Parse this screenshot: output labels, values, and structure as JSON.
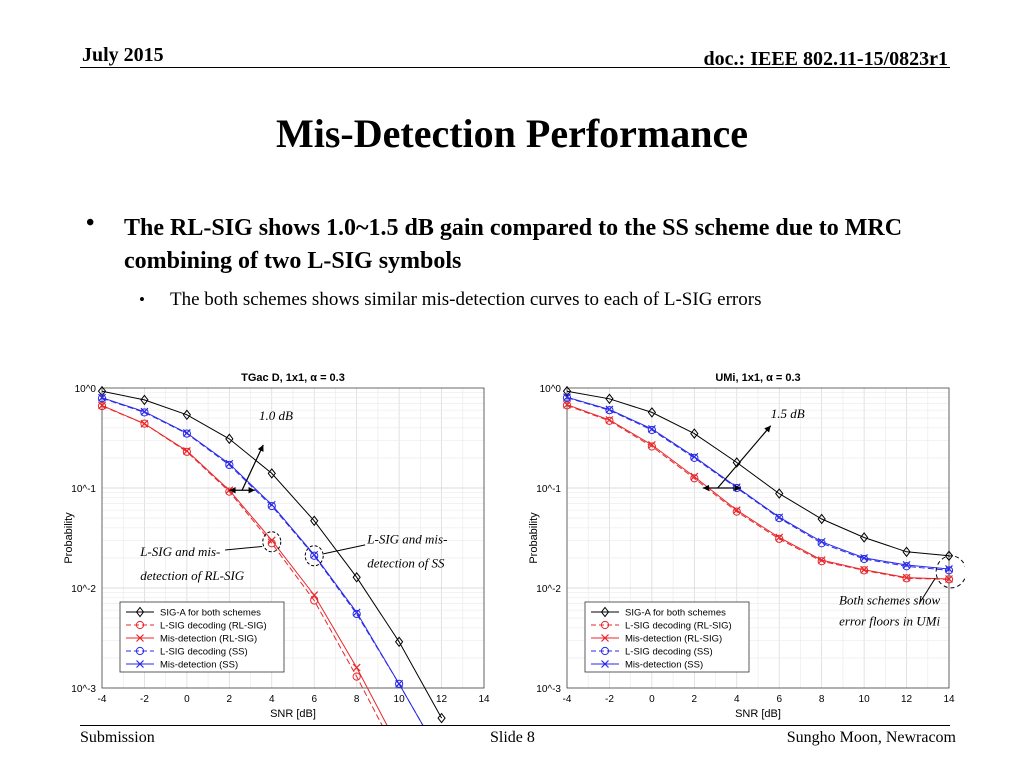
{
  "header": {
    "date": "July 2015",
    "doc": "doc.: IEEE 802.11-15/0823r1"
  },
  "title": "Mis-Detection Performance",
  "bullets": {
    "main": "The RL-SIG shows 1.0~1.5 dB gain compared to the SS scheme due to MRC combining of two L-SIG symbols",
    "sub": "The both schemes shows similar mis-detection curves to each of L-SIG errors",
    "main_marker": "•",
    "sub_marker": "•"
  },
  "footer": {
    "left": "Submission",
    "center": "Slide 8",
    "right": "Sungho Moon, Newracom"
  },
  "chart_data": [
    {
      "type": "line",
      "title": "TGac D, 1x1, α = 0.3",
      "xlabel": "SNR [dB]",
      "ylabel": "Probability",
      "xlim": [
        -4,
        14
      ],
      "ylim": [
        0.001,
        1
      ],
      "yscale": "log",
      "xticks": [
        "-4",
        "-2",
        "0",
        "2",
        "4",
        "6",
        "8",
        "10",
        "12",
        "14"
      ],
      "yticks": [
        "10^0",
        "10^-1",
        "10^-2",
        "10^-3"
      ],
      "grid": true,
      "legend_position": "bottom-left",
      "x": [
        -4,
        -2,
        0,
        2,
        4,
        6,
        8,
        10,
        12,
        14
      ],
      "series": [
        {
          "name": "SIG-A for both schemes",
          "color": "#000000",
          "marker": "diamond",
          "dash": false,
          "values": [
            0.93,
            0.76,
            0.54,
            0.31,
            0.14,
            0.047,
            0.0128,
            0.0029,
            0.0005,
            null
          ]
        },
        {
          "name": "L-SIG decoding (RL-SIG)",
          "color": "#e8262a",
          "marker": "circle",
          "dash": true,
          "values": [
            0.66,
            0.44,
            0.23,
            0.092,
            0.028,
            0.0075,
            0.0013,
            0.0002,
            null,
            null
          ]
        },
        {
          "name": "Mis-detection (RL-SIG)",
          "color": "#e8262a",
          "marker": "x",
          "dash": false,
          "values": [
            0.67,
            0.44,
            0.235,
            0.095,
            0.03,
            0.0085,
            0.0016,
            0.00025,
            null,
            null
          ]
        },
        {
          "name": "L-SIG decoding (SS)",
          "color": "#2a2ae8",
          "marker": "circle",
          "dash": true,
          "values": [
            0.79,
            0.57,
            0.35,
            0.17,
            0.066,
            0.021,
            0.0055,
            0.0011,
            0.0002,
            null
          ]
        },
        {
          "name": "Mis-detection (SS)",
          "color": "#2a2ae8",
          "marker": "x",
          "dash": false,
          "values": [
            0.8,
            0.58,
            0.355,
            0.175,
            0.068,
            0.0215,
            0.0057,
            0.0011,
            0.0002,
            null
          ]
        }
      ],
      "annotations": [
        "1.0 dB",
        "L-SIG and mis-detection of RL-SIG",
        "L-SIG and mis-detection of SS"
      ]
    },
    {
      "type": "line",
      "title": "UMi, 1x1, α = 0.3",
      "xlabel": "SNR [dB]",
      "ylabel": "Probability",
      "xlim": [
        -4,
        14
      ],
      "ylim": [
        0.001,
        1
      ],
      "yscale": "log",
      "xticks": [
        "-4",
        "-2",
        "0",
        "2",
        "4",
        "6",
        "8",
        "10",
        "12",
        "14"
      ],
      "yticks": [
        "10^0",
        "10^-1",
        "10^-2",
        "10^-3"
      ],
      "grid": true,
      "legend_position": "bottom-left",
      "x": [
        -4,
        -2,
        0,
        2,
        4,
        6,
        8,
        10,
        12,
        14
      ],
      "series": [
        {
          "name": "SIG-A for both schemes",
          "color": "#000000",
          "marker": "diamond",
          "dash": false,
          "values": [
            0.93,
            0.78,
            0.57,
            0.35,
            0.18,
            0.088,
            0.049,
            0.032,
            0.023,
            0.021
          ]
        },
        {
          "name": "L-SIG decoding (RL-SIG)",
          "color": "#e8262a",
          "marker": "circle",
          "dash": true,
          "values": [
            0.67,
            0.47,
            0.26,
            0.125,
            0.058,
            0.031,
            0.0185,
            0.015,
            0.0125,
            0.0122
          ]
        },
        {
          "name": "Mis-detection (RL-SIG)",
          "color": "#e8262a",
          "marker": "x",
          "dash": false,
          "values": [
            0.68,
            0.48,
            0.27,
            0.13,
            0.06,
            0.032,
            0.019,
            0.0152,
            0.0127,
            0.0123
          ]
        },
        {
          "name": "L-SIG decoding (SS)",
          "color": "#2a2ae8",
          "marker": "circle",
          "dash": true,
          "values": [
            0.8,
            0.6,
            0.38,
            0.2,
            0.1,
            0.05,
            0.028,
            0.0195,
            0.0165,
            0.015
          ]
        },
        {
          "name": "Mis-detection (SS)",
          "color": "#2a2ae8",
          "marker": "x",
          "dash": false,
          "values": [
            0.81,
            0.61,
            0.39,
            0.205,
            0.102,
            0.051,
            0.029,
            0.02,
            0.017,
            0.0155
          ]
        }
      ],
      "annotations": [
        "1.5 dB",
        "Both schemes show error floors in UMi"
      ]
    }
  ]
}
